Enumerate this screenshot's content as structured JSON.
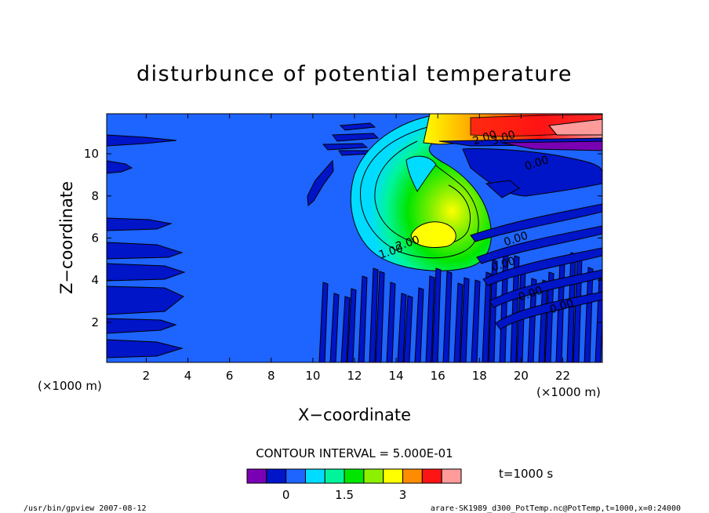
{
  "chart_data": {
    "type": "heatmap",
    "title": "disturbunce of potential temperature",
    "xlabel": "X−coordinate",
    "ylabel": "Z−coordinate",
    "x_unit": "(×1000 m)",
    "y_unit": "(×1000 m)",
    "xlim": [
      0.1,
      23.9
    ],
    "ylim": [
      0.1,
      11.9
    ],
    "x_ticks": [
      2,
      4,
      6,
      8,
      10,
      12,
      14,
      16,
      18,
      20,
      22
    ],
    "y_ticks": [
      2,
      4,
      6,
      8,
      10
    ],
    "contour_interval_text": "CONTOUR INTERVAL = 5.000E-01",
    "time_text": "t=1000 s",
    "colorbar": {
      "colors": [
        "#7a00b4",
        "#0014c8",
        "#1e64ff",
        "#00dcff",
        "#00f59b",
        "#00e600",
        "#8cf000",
        "#ffff00",
        "#ff8c00",
        "#ff1414",
        "#ff9b9b"
      ],
      "tick_labels": [
        "0",
        "1.5",
        "3"
      ],
      "tick_values": [
        0,
        1.5,
        3
      ]
    },
    "contour_labels": [
      {
        "text": "2.00",
        "x": 14.6,
        "y": 5.6
      },
      {
        "text": "1.00",
        "x": 13.8,
        "y": 5.2
      },
      {
        "text": "2.00",
        "x": 18.3,
        "y": 10.6
      },
      {
        "text": "3.00",
        "x": 19.2,
        "y": 10.6
      },
      {
        "text": "0.00",
        "x": 20.8,
        "y": 9.4
      },
      {
        "text": "0.00",
        "x": 19.8,
        "y": 5.8
      },
      {
        "text": "0.00",
        "x": 19.2,
        "y": 4.6
      },
      {
        "text": "0.00",
        "x": 20.5,
        "y": 3.2
      },
      {
        "text": "0.00",
        "x": 22.0,
        "y": 2.6
      }
    ],
    "grid": false,
    "legend": "bottom (colorbar)"
  },
  "footer": {
    "left": "/usr/bin/gpview   2007-08-12",
    "right": "arare-SK1989_d300_PotTemp.nc@PotTemp,t=1000,x=0:24000"
  }
}
